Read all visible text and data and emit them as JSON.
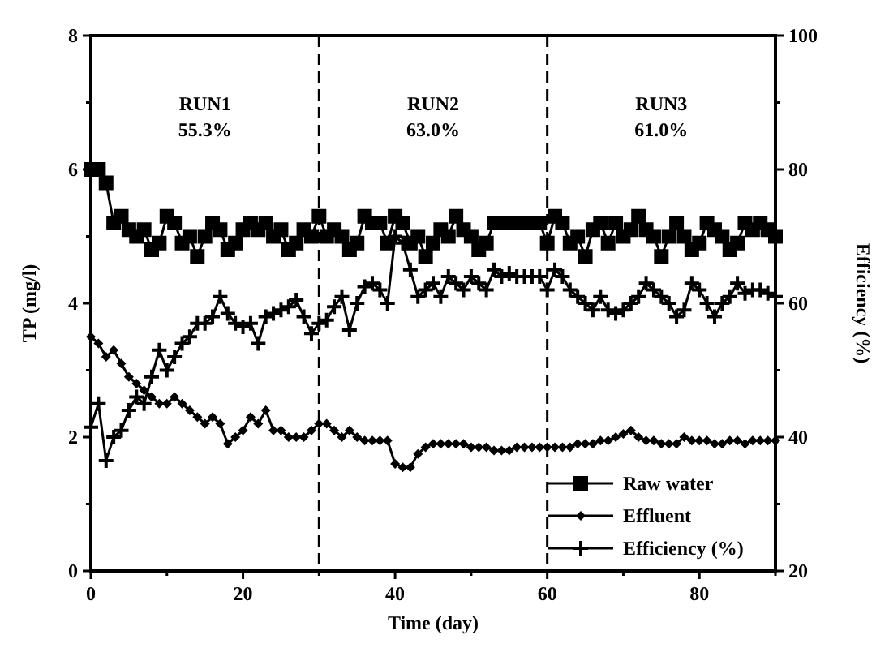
{
  "chart_data": {
    "type": "line",
    "xlabel": "Time (day)",
    "ylabel": "TP (mg/l)",
    "y2label": "Efficiency (%)",
    "x": [
      0,
      1,
      2,
      3,
      4,
      5,
      6,
      7,
      8,
      9,
      10,
      11,
      12,
      13,
      14,
      15,
      16,
      17,
      18,
      19,
      20,
      21,
      22,
      23,
      24,
      25,
      26,
      27,
      28,
      29,
      30,
      31,
      32,
      33,
      34,
      35,
      36,
      37,
      38,
      39,
      40,
      41,
      42,
      43,
      44,
      45,
      46,
      47,
      48,
      49,
      50,
      51,
      52,
      53,
      54,
      55,
      56,
      57,
      58,
      59,
      60,
      61,
      62,
      63,
      64,
      65,
      66,
      67,
      68,
      69,
      70,
      71,
      72,
      73,
      74,
      75,
      76,
      77,
      78,
      79,
      80,
      81,
      82,
      83,
      84,
      85,
      86,
      87,
      88,
      89,
      90
    ],
    "series": [
      {
        "name": "Raw water",
        "color": "#000000",
        "marker": "square",
        "values": [
          6.0,
          6.0,
          5.8,
          5.2,
          5.3,
          5.1,
          5.0,
          5.1,
          4.8,
          4.9,
          5.3,
          5.2,
          4.9,
          5.0,
          4.7,
          5.0,
          5.2,
          5.1,
          4.8,
          4.9,
          5.1,
          5.2,
          5.1,
          5.2,
          5.0,
          5.1,
          4.8,
          4.9,
          5.1,
          5.0,
          5.3,
          5.0,
          5.1,
          5.0,
          4.8,
          4.9,
          5.3,
          5.2,
          5.2,
          4.9,
          5.3,
          5.2,
          4.9,
          5.0,
          4.7,
          4.9,
          5.1,
          5.0,
          5.3,
          5.1,
          5.0,
          4.8,
          4.9,
          5.2,
          5.2,
          5.2,
          5.2,
          5.2,
          5.2,
          5.2,
          4.9,
          5.3,
          5.2,
          4.9,
          5.0,
          4.7,
          5.1,
          5.2,
          4.9,
          5.2,
          5.0,
          5.1,
          5.3,
          5.1,
          5.0,
          4.7,
          5.0,
          5.2,
          5.0,
          4.8,
          4.9,
          5.2,
          5.1,
          5.0,
          4.8,
          4.9,
          5.2,
          5.1,
          5.2,
          5.1,
          5.0
        ]
      },
      {
        "name": "Effluent",
        "color": "#000000",
        "marker": "diamond",
        "values": [
          3.5,
          3.4,
          3.2,
          3.3,
          3.1,
          2.9,
          2.8,
          2.7,
          2.6,
          2.5,
          2.5,
          2.6,
          2.5,
          2.4,
          2.3,
          2.2,
          2.3,
          2.2,
          1.9,
          2.0,
          2.1,
          2.3,
          2.2,
          2.4,
          2.1,
          2.1,
          2.0,
          2.0,
          2.0,
          2.1,
          2.2,
          2.2,
          2.1,
          2.0,
          2.1,
          2.0,
          1.95,
          1.95,
          1.95,
          1.95,
          1.6,
          1.55,
          1.55,
          1.75,
          1.85,
          1.9,
          1.9,
          1.9,
          1.9,
          1.9,
          1.85,
          1.85,
          1.85,
          1.8,
          1.8,
          1.8,
          1.85,
          1.85,
          1.85,
          1.85,
          1.85,
          1.85,
          1.85,
          1.85,
          1.9,
          1.9,
          1.9,
          1.95,
          1.95,
          2.0,
          2.05,
          2.1,
          2.0,
          1.95,
          1.95,
          1.9,
          1.9,
          1.9,
          2.0,
          1.95,
          1.95,
          1.95,
          1.9,
          1.9,
          1.95,
          1.95,
          1.9,
          1.95,
          1.95,
          1.95,
          1.95
        ]
      },
      {
        "name": "Efficiency (%)",
        "color": "#000000",
        "marker": "cross",
        "axis": "y2",
        "values": [
          41.5,
          45,
          36.5,
          40,
          41,
          44,
          46,
          45,
          49,
          53,
          50,
          52,
          54,
          55,
          57,
          57,
          58,
          61,
          58.5,
          57,
          56.5,
          57,
          54,
          58,
          58.5,
          59,
          59.5,
          60.5,
          58,
          55.5,
          57,
          57.5,
          59.5,
          61,
          56,
          60,
          62.5,
          63,
          62,
          60,
          70,
          69,
          65,
          61,
          62,
          63,
          61,
          64,
          63,
          62,
          64,
          63,
          62,
          65,
          64,
          64.5,
          64,
          64,
          64,
          64,
          62,
          65,
          64,
          62,
          61,
          60,
          59,
          61,
          59,
          58.5,
          59,
          60,
          61,
          63,
          62,
          61,
          60,
          58,
          59,
          63,
          62,
          60,
          58,
          60,
          61,
          63,
          61.5,
          62,
          62,
          61.5,
          61
        ]
      }
    ],
    "xlim": [
      0,
      90
    ],
    "xticks": [
      0,
      {
        "value": 10,
        "label": null
      },
      20,
      {
        "value": 30,
        "label": null
      },
      40,
      {
        "value": 50,
        "label": null
      },
      60,
      {
        "value": 70,
        "label": null
      },
      80,
      {
        "value": 90,
        "label": null
      }
    ],
    "ylim": [
      0,
      8
    ],
    "yticks": [
      0,
      {
        "value": 1,
        "label": null
      },
      2,
      {
        "value": 3,
        "label": null
      },
      4,
      {
        "value": 5,
        "label": null
      },
      6,
      {
        "value": 7,
        "label": null
      },
      8
    ],
    "y2lim": [
      20,
      100
    ],
    "y2ticks": [
      20,
      {
        "value": 30,
        "label": null
      },
      40,
      {
        "value": 50,
        "label": null
      },
      60,
      {
        "value": 70,
        "label": null
      },
      80,
      {
        "value": 90,
        "label": null
      },
      100
    ],
    "ref_lines": [
      {
        "axis": "x",
        "value": 30,
        "line_style": "dashed"
      },
      {
        "axis": "x",
        "value": 60,
        "line_style": "dashed"
      }
    ],
    "annotations": [
      "RUN1",
      "55.3%",
      "RUN2",
      "63.0%",
      "RUN3",
      "61.0%"
    ],
    "legend": "bottom right",
    "grid": false,
    "line_style": "solid"
  }
}
